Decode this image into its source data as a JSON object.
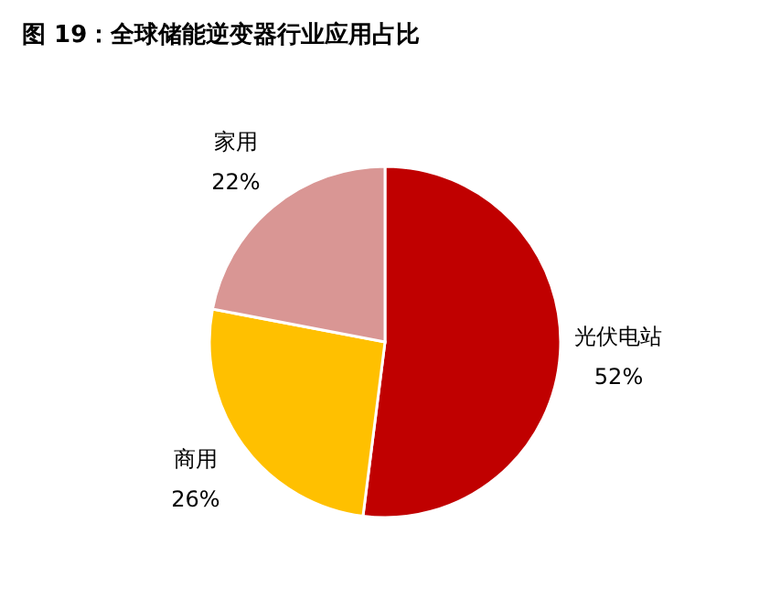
{
  "chart_data": {
    "type": "pie",
    "title": "图 19：全球储能逆变器行业应用占比",
    "categories": [
      "光伏电站",
      "商用",
      "家用"
    ],
    "values": [
      52,
      26,
      22
    ],
    "colors": [
      "#c00000",
      "#ffc000",
      "#d99694"
    ],
    "value_labels": [
      "52%",
      "26%",
      "22%"
    ],
    "legend": false
  }
}
